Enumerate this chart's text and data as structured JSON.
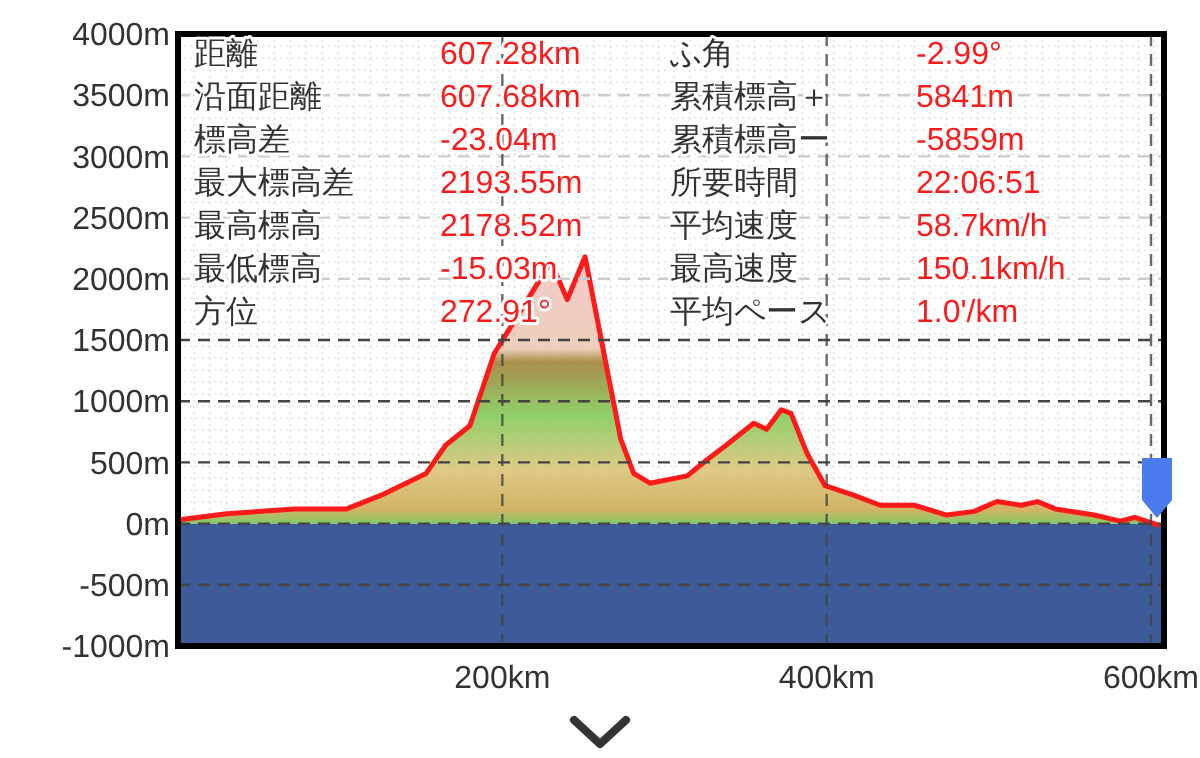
{
  "chart_data": {
    "type": "area",
    "x": [
      0,
      30,
      72,
      104,
      125,
      153,
      165,
      180,
      195,
      230,
      240,
      251,
      273,
      281,
      291,
      314,
      326,
      338,
      355,
      363,
      372,
      378,
      388,
      399,
      417,
      433,
      454,
      474,
      491,
      505,
      520,
      530,
      541,
      565,
      581,
      590,
      604
    ],
    "series": [
      {
        "color": "#ff1a1a",
        "values": [
          30,
          80,
          120,
          120,
          230,
          410,
          640,
          800,
          1390,
          2140,
          1830,
          2180,
          690,
          410,
          330,
          390,
          520,
          640,
          820,
          770,
          930,
          900,
          570,
          310,
          230,
          150,
          150,
          70,
          100,
          180,
          150,
          180,
          120,
          70,
          20,
          50,
          -10
        ]
      }
    ],
    "xlim": [
      0,
      608
    ],
    "ylim": [
      -1000,
      4000
    ],
    "xticks": [
      {
        "value": 200,
        "label": "200km"
      },
      {
        "value": 400,
        "label": "400km"
      },
      {
        "value": 600,
        "label": "600km"
      }
    ],
    "yticks": [
      {
        "value": -1000,
        "label": "-1000m"
      },
      {
        "value": -500,
        "label": "-500m"
      },
      {
        "value": 0,
        "label": "0m"
      },
      {
        "value": 500,
        "label": "500m"
      },
      {
        "value": 1000,
        "label": "1000m"
      },
      {
        "value": 1500,
        "label": "1500m"
      },
      {
        "value": 2000,
        "label": "2000m"
      },
      {
        "value": 2500,
        "label": "2500m"
      },
      {
        "value": 3000,
        "label": "3000m"
      },
      {
        "value": 3500,
        "label": "3500m"
      },
      {
        "value": 4000,
        "label": "4000m"
      }
    ],
    "grid": true,
    "bands": [
      {
        "axis": "y",
        "from": -1000,
        "to": 0,
        "color": "#3d5a98"
      }
    ],
    "annotations": [
      "距離",
      "607.28km",
      "沿面距離",
      "607.68km",
      "標高差",
      "-23.04m",
      "最大標高差",
      "2193.55m",
      "最高標高",
      "2178.52m",
      "最低標高",
      "-15.03m",
      "方位",
      "272.91°",
      "ふ角",
      "-2.99°",
      "累積標高＋",
      "5841m",
      "累積標高ー",
      "-5859m",
      "所要時間",
      "22:06:51",
      "平均速度",
      "58.7km/h",
      "最高速度",
      "150.1km/h",
      "平均ペース",
      "1.0'/km"
    ]
  }
}
